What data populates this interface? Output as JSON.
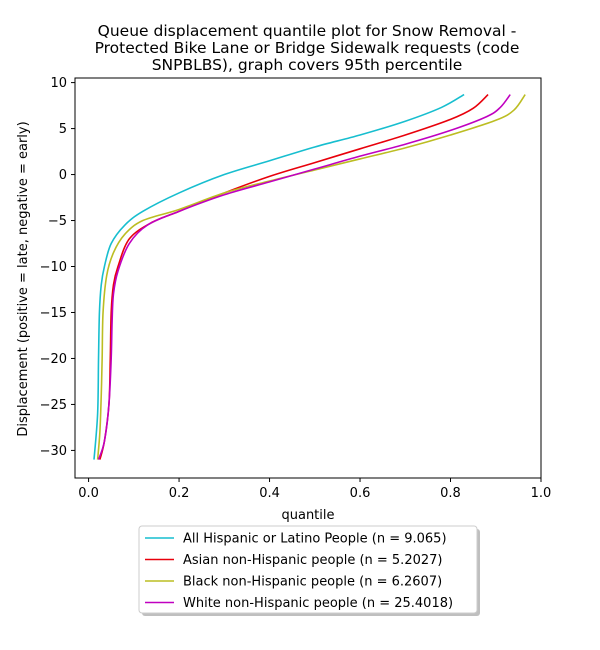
{
  "chart_data": {
    "type": "line",
    "title_lines": [
      "Queue displacement quantile plot for Snow Removal -",
      "Protected Bike Lane or Bridge Sidewalk  requests (code",
      "SNPBLBS), graph covers 95th percentile"
    ],
    "xlabel": "quantile",
    "ylabel": "Displacement (positive = late, negative = early)",
    "xlim": [
      -0.03,
      1.0
    ],
    "ylim": [
      -33,
      10.5
    ],
    "xticks": [
      0.0,
      0.2,
      0.4,
      0.6,
      0.8,
      1.0
    ],
    "xtick_labels": [
      "0.0",
      "0.2",
      "0.4",
      "0.6",
      "0.8",
      "1.0"
    ],
    "yticks": [
      10,
      5,
      0,
      -5,
      -10,
      -15,
      -20,
      -25,
      -30
    ],
    "ytick_labels": [
      "10",
      "5",
      "0",
      "−5",
      "−10",
      "−15",
      "−20",
      "−25",
      "−30"
    ],
    "legend_position": "below plot",
    "series": [
      {
        "name": "All Hispanic or Latino People (n = 9.065)",
        "color": "#17becf",
        "points": [
          [
            0.012,
            -31.0
          ],
          [
            0.02,
            -26.0
          ],
          [
            0.022,
            -20.0
          ],
          [
            0.024,
            -15.0
          ],
          [
            0.028,
            -12.0
          ],
          [
            0.035,
            -10.0
          ],
          [
            0.05,
            -7.5
          ],
          [
            0.08,
            -5.5
          ],
          [
            0.12,
            -4.0
          ],
          [
            0.2,
            -2.0
          ],
          [
            0.3,
            0.0
          ],
          [
            0.4,
            1.5
          ],
          [
            0.5,
            3.0
          ],
          [
            0.6,
            4.3
          ],
          [
            0.7,
            5.8
          ],
          [
            0.78,
            7.3
          ],
          [
            0.83,
            8.7
          ]
        ]
      },
      {
        "name": "Asian non-Hispanic people (n = 5.2027)",
        "color": "#e8000b",
        "points": [
          [
            0.025,
            -31.0
          ],
          [
            0.035,
            -29.0
          ],
          [
            0.045,
            -25.0
          ],
          [
            0.048,
            -20.0
          ],
          [
            0.05,
            -15.0
          ],
          [
            0.055,
            -12.0
          ],
          [
            0.065,
            -10.0
          ],
          [
            0.09,
            -7.0
          ],
          [
            0.14,
            -5.2
          ],
          [
            0.2,
            -4.0
          ],
          [
            0.3,
            -2.0
          ],
          [
            0.4,
            -0.2
          ],
          [
            0.5,
            1.3
          ],
          [
            0.6,
            2.8
          ],
          [
            0.7,
            4.3
          ],
          [
            0.8,
            6.0
          ],
          [
            0.85,
            7.2
          ],
          [
            0.883,
            8.7
          ]
        ]
      },
      {
        "name": "Black non-Hispanic people (n = 6.2607)",
        "color": "#bcbd22",
        "points": [
          [
            0.02,
            -31.0
          ],
          [
            0.025,
            -28.0
          ],
          [
            0.028,
            -24.0
          ],
          [
            0.03,
            -20.0
          ],
          [
            0.032,
            -15.0
          ],
          [
            0.04,
            -11.0
          ],
          [
            0.055,
            -8.5
          ],
          [
            0.08,
            -6.5
          ],
          [
            0.12,
            -5.0
          ],
          [
            0.2,
            -3.8
          ],
          [
            0.3,
            -2.0
          ],
          [
            0.4,
            -0.7
          ],
          [
            0.5,
            0.5
          ],
          [
            0.6,
            1.7
          ],
          [
            0.7,
            2.9
          ],
          [
            0.8,
            4.3
          ],
          [
            0.9,
            5.9
          ],
          [
            0.94,
            7.0
          ],
          [
            0.965,
            8.7
          ]
        ]
      },
      {
        "name": "White non-Hispanic people (n = 25.4018)",
        "color": "#c000c0",
        "points": [
          [
            0.022,
            -31.0
          ],
          [
            0.035,
            -29.0
          ],
          [
            0.045,
            -25.0
          ],
          [
            0.05,
            -20.0
          ],
          [
            0.052,
            -16.0
          ],
          [
            0.055,
            -13.0
          ],
          [
            0.065,
            -10.5
          ],
          [
            0.09,
            -7.5
          ],
          [
            0.13,
            -5.5
          ],
          [
            0.2,
            -4.0
          ],
          [
            0.3,
            -2.2
          ],
          [
            0.4,
            -0.8
          ],
          [
            0.5,
            0.6
          ],
          [
            0.6,
            2.0
          ],
          [
            0.7,
            3.3
          ],
          [
            0.8,
            4.8
          ],
          [
            0.88,
            6.3
          ],
          [
            0.91,
            7.3
          ],
          [
            0.932,
            8.7
          ]
        ]
      }
    ]
  }
}
